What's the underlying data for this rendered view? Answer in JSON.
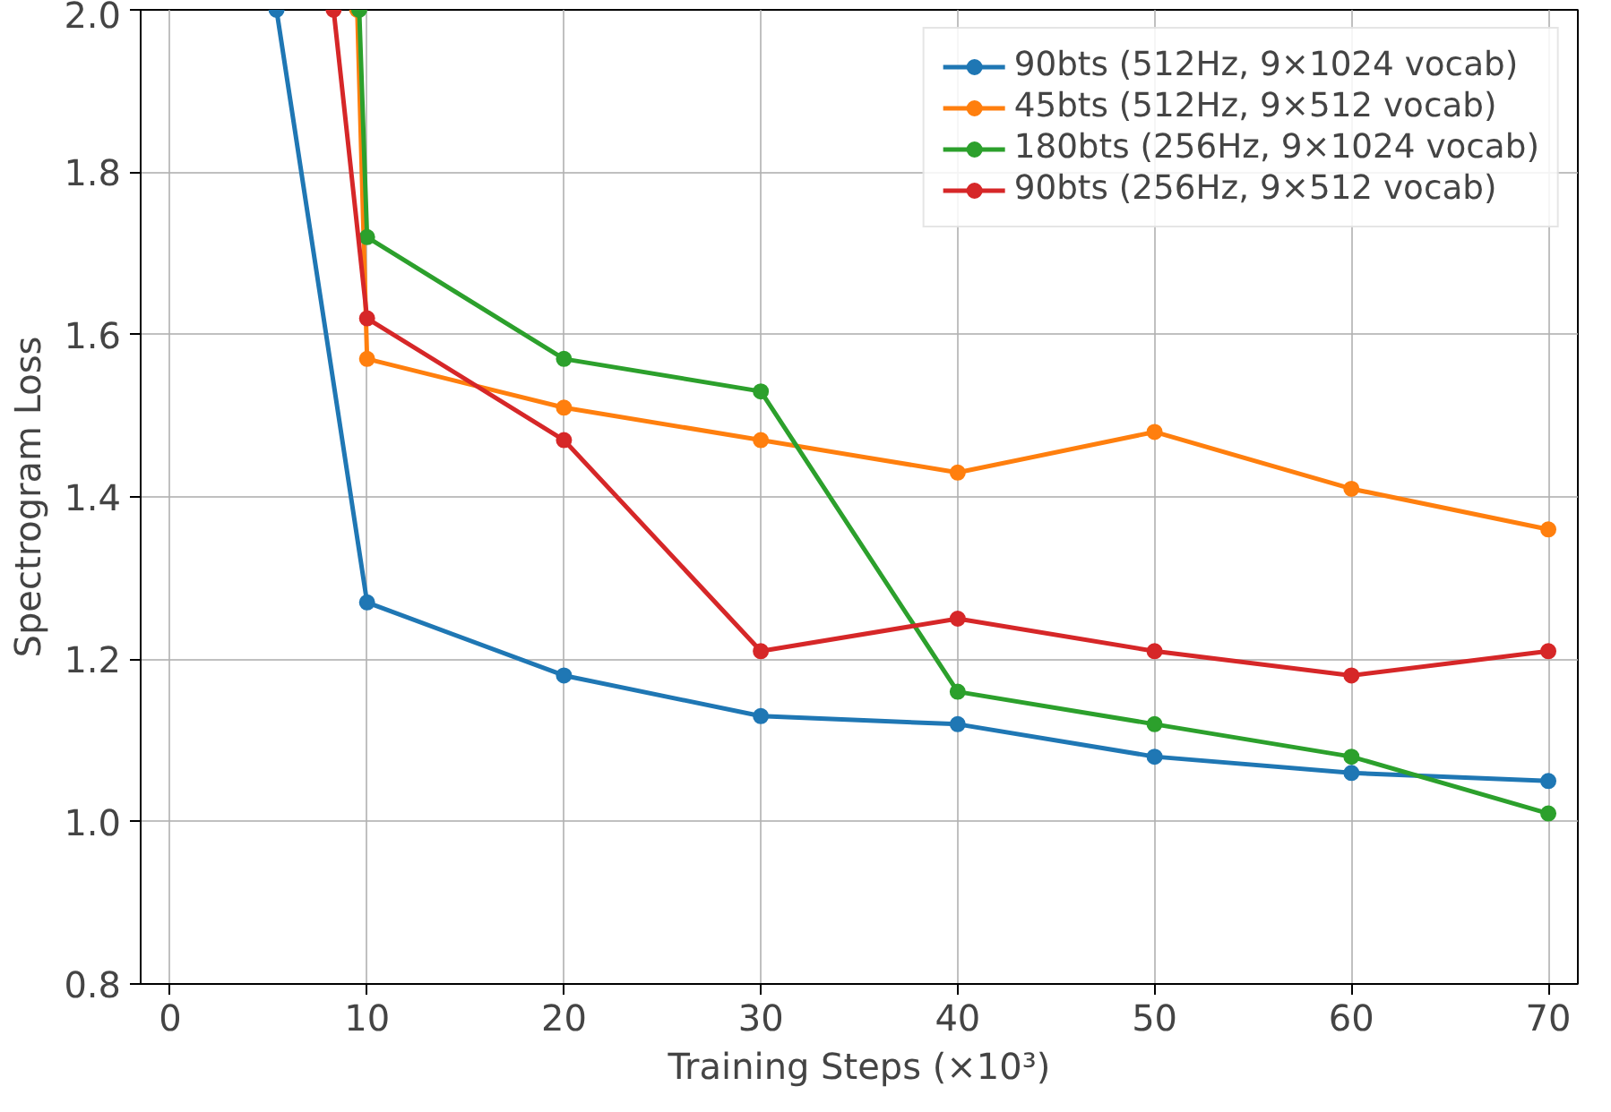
{
  "chart_data": {
    "type": "line",
    "xlabel": "Training Steps (×10³)",
    "ylabel": "Spectrogram Loss",
    "xlim": [
      -1.5,
      71.5
    ],
    "ylim": [
      0.8,
      2.0
    ],
    "xticks": [
      0,
      10,
      20,
      30,
      40,
      50,
      60,
      70
    ],
    "yticks": [
      0.8,
      {
        "value": 1.0,
        "label": "1.0"
      },
      1.2,
      1.4,
      1.6,
      1.8,
      {
        "value": 2.0,
        "label": "2.0"
      }
    ],
    "grid": true,
    "legend": "top right",
    "marker": "circle",
    "line_style": "solid",
    "series": [
      {
        "name": "90bts (512Hz, 9×1024 vocab)",
        "color": "#1f77b4",
        "x": [
          5.4,
          10,
          20,
          30,
          40,
          50,
          60,
          70
        ],
        "values": [
          2.0,
          1.27,
          1.18,
          1.13,
          1.12,
          1.08,
          1.06,
          1.05
        ]
      },
      {
        "name": "45bts (512Hz, 9×512 vocab)",
        "color": "#ff7f0e",
        "x": [
          9.5,
          10,
          20,
          30,
          40,
          50,
          60,
          70
        ],
        "values": [
          2.0,
          1.57,
          1.51,
          1.47,
          1.43,
          1.48,
          1.41,
          1.36
        ]
      },
      {
        "name": "180bts (256Hz, 9×1024 vocab)",
        "color": "#2ca02c",
        "x": [
          9.6,
          10,
          20,
          30,
          40,
          50,
          60,
          70
        ],
        "values": [
          2.0,
          1.72,
          1.57,
          1.53,
          1.16,
          1.12,
          1.08,
          1.01
        ]
      },
      {
        "name": "90bts (256Hz, 9×512 vocab)",
        "color": "#d62728",
        "x": [
          8.3,
          10,
          20,
          30,
          40,
          50,
          60,
          70
        ],
        "values": [
          2.0,
          1.62,
          1.47,
          1.21,
          1.25,
          1.21,
          1.18,
          1.21
        ]
      }
    ]
  }
}
